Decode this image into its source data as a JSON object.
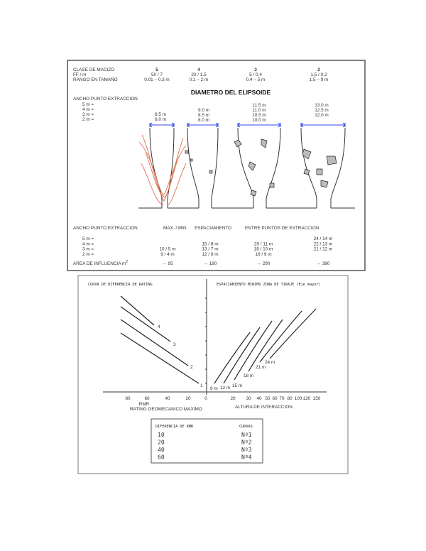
{
  "fig1": {
    "header_labels": [
      "CLASE DE MACIZO",
      "FF / m",
      "RANGO EN TAMAÑO"
    ],
    "classes": [
      {
        "clase": "5",
        "ff": "50 / 7",
        "rango": "0.01 – 0.3 m",
        "diam": [
          "6.5 m",
          "6.0 m"
        ]
      },
      {
        "clase": "4",
        "ff": "20 / 1.5",
        "rango": "0.1 – 2 m",
        "diam": [
          "9.0 m",
          "8.5 m",
          "8.0 m"
        ]
      },
      {
        "clase": "3",
        "ff": "5 / 0.4",
        "rango": "0.4 – 5 m",
        "diam": [
          "11.5 m",
          "11.0 m",
          "10.5 m",
          "10.0 m"
        ]
      },
      {
        "clase": "2",
        "ff": "1.5 / 0.2",
        "rango": "1.5 – 9 m",
        "diam": [
          "13.0 m",
          "12.5 m",
          "12.0 m"
        ]
      }
    ],
    "title": "DIAMETRO DEL ELIPSOIDE",
    "ancho_label": "ANCHO PUNTO EXTRACCION",
    "widths": [
      "5 m =",
      "4 m =",
      "3 m =",
      "2 m ="
    ],
    "spacing_header": [
      "MAX. / MIN",
      "ESPACIAMIENTO",
      "ENTRE PUNTOS DE EXTRACCION"
    ],
    "spacing": [
      [
        "",
        "",
        "",
        "24 / 14 m"
      ],
      [
        "",
        "15 / 8 m",
        "20 / 11 m",
        "22 / 13 m"
      ],
      [
        "10 / 5 m",
        "13 / 7 m",
        "18 / 10 m",
        "21 / 12 m"
      ],
      [
        "9 / 4 m",
        "12 / 6 m",
        "16 / 9 m",
        ""
      ]
    ],
    "area_label": "AREA DE INFLUENCIA m",
    "area_sup": "2",
    "areas": [
      "→ 95",
      "→ 180",
      "→ 290",
      "→ 380"
    ],
    "arrow_color": "#3344ee",
    "flow_color": "#e07050"
  },
  "fig2": {
    "left_title": "CURVA DE DIFERENCIA DE RATING",
    "right_title": "ESPACIAMIENTO MINIMO ZONA DE TIRAJE (Eje mayor)",
    "left_ticks": [
      "80",
      "60",
      "40",
      "20",
      "0"
    ],
    "right_ticks": [
      "20",
      "30",
      "40",
      "50",
      "60",
      "70",
      "80",
      "100",
      "120",
      "150"
    ],
    "xlabel_left": "RMR",
    "xlabel_left_sub": "RATING GEOMECANICO MAXIMO",
    "xlabel_right": "ALTURA DE INTERACCION",
    "curve_labels": [
      "1",
      "2",
      "3",
      "4"
    ],
    "spacing_labels": [
      "9 m",
      "12 m",
      "15 m",
      "18 m",
      "21 m",
      "24 m"
    ],
    "table": {
      "headers": [
        "DIFERENCIA DE RMR",
        "CURVAS"
      ],
      "rows": [
        [
          "10",
          "Nº1"
        ],
        [
          "20",
          "Nº2"
        ],
        [
          "40",
          "Nº3"
        ],
        [
          "60",
          "Nº4"
        ]
      ]
    }
  }
}
